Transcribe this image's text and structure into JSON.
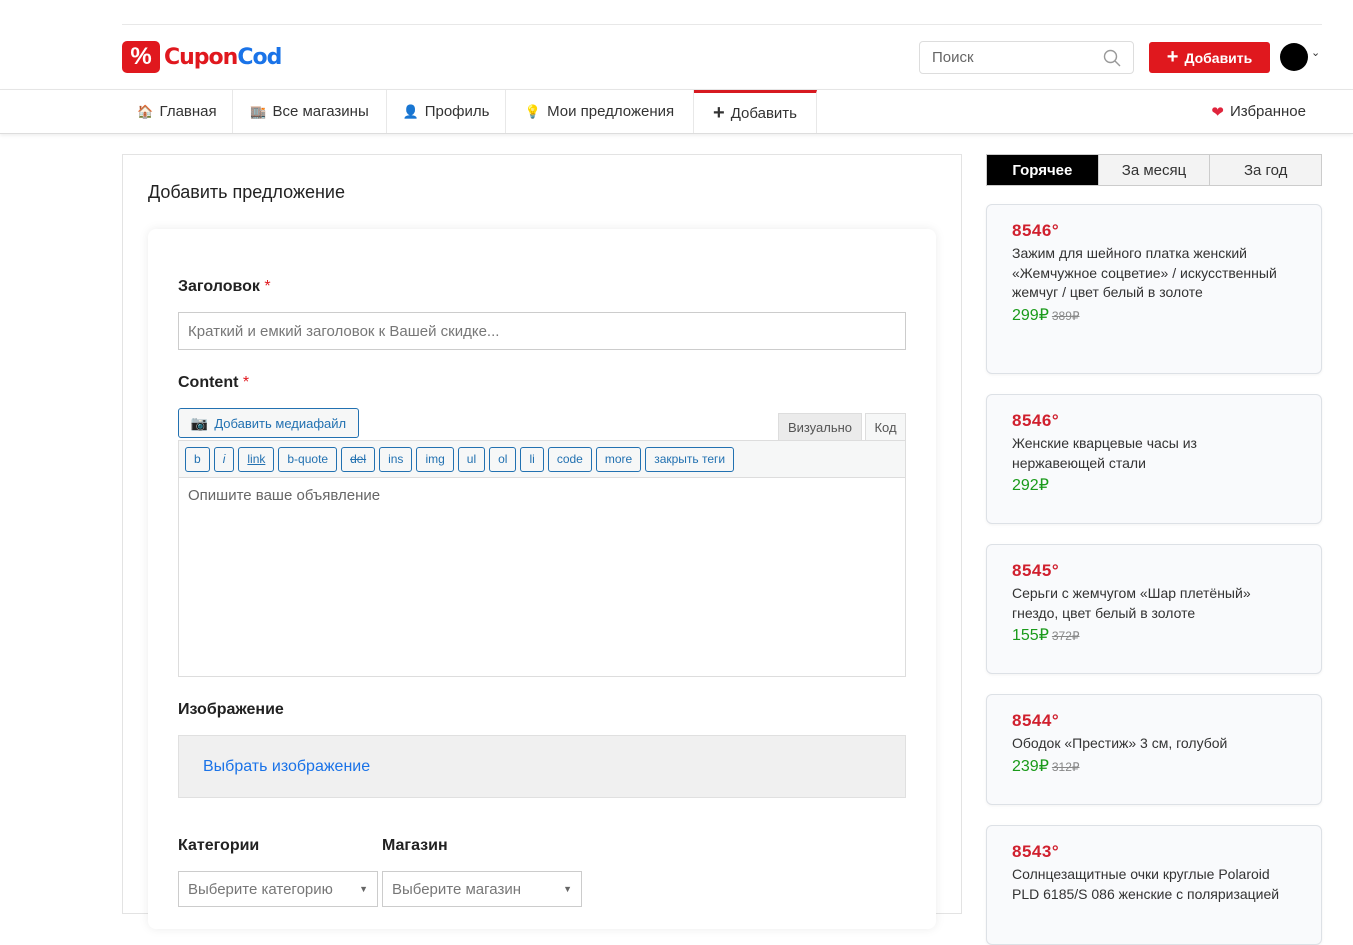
{
  "header": {
    "logo_cupon": "Cupon",
    "logo_cod": "Cod",
    "search_placeholder": "Поиск",
    "add_label": "Добавить"
  },
  "nav": {
    "items": [
      {
        "icon": "🏠",
        "label": "Главная"
      },
      {
        "icon": "🏬",
        "label": "Все магазины"
      },
      {
        "icon": "👤",
        "label": "Профиль"
      },
      {
        "icon": "💡",
        "label": "Мои предложения"
      },
      {
        "icon": "+",
        "label": "Добавить"
      }
    ],
    "favorites": "Избранное"
  },
  "form": {
    "page_title": "Добавить предложение",
    "title_label": "Заголовок",
    "required": "*",
    "title_placeholder": "Краткий и емкий заголовок к Вашей скидке...",
    "content_label": "Content",
    "media_button": "Добавить медиафайл",
    "tab_visual": "Визуально",
    "tab_code": "Код",
    "quicktags": [
      "b",
      "i",
      "link",
      "b-quote",
      "del",
      "ins",
      "img",
      "ul",
      "ol",
      "li",
      "code",
      "more",
      "закрыть теги"
    ],
    "content_placeholder": "Опишите ваше объявление",
    "image_label": "Изображение",
    "image_link": "Выбрать изображение",
    "category_label": "Категории",
    "store_label": "Магазин",
    "category_placeholder": "Выберите категорию",
    "store_placeholder": "Выберите магазин"
  },
  "sidebar": {
    "tabs": [
      "Горячее",
      "За месяц",
      "За год"
    ],
    "active_tab": "Горячее",
    "deals": [
      {
        "score": "8546°",
        "title": "Зажим для шейного платка женский «Жемчужное соцветие» / искусственный жемчуг / цвет белый в золоте",
        "price": "299₽",
        "old_price": "389₽"
      },
      {
        "score": "8546°",
        "title": "Женские кварцевые часы из нержавеющей стали",
        "price": "292₽",
        "old_price": ""
      },
      {
        "score": "8545°",
        "title": "Серьги с жемчугом «Шар плетёный» гнездо, цвет белый в золоте",
        "price": "155₽",
        "old_price": "372₽"
      },
      {
        "score": "8544°",
        "title": "Ободок «Престиж» 3 см, голубой",
        "price": "239₽",
        "old_price": "312₽"
      },
      {
        "score": "8543°",
        "title": "Солнцезащитные очки круглые Polaroid PLD 6185/S 086 женские с поляризацией",
        "price": "",
        "old_price": ""
      }
    ]
  },
  "colors": {
    "brand_red": "#e0181e",
    "brand_blue": "#1a73e8",
    "link": "#2271b1",
    "price_green": "#1a9a1a"
  }
}
